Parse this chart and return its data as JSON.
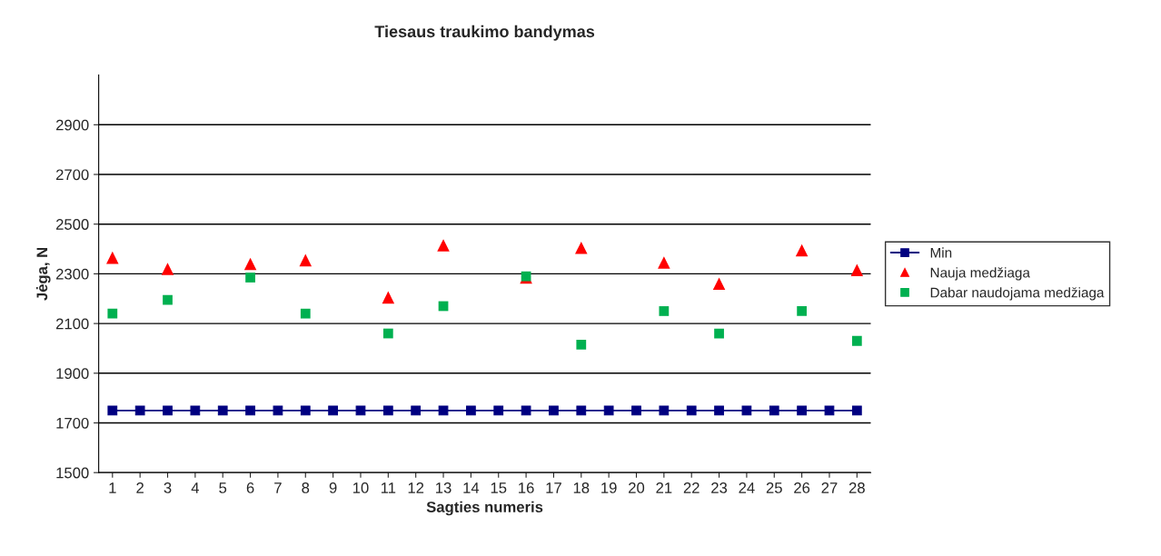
{
  "chart_data": {
    "type": "line",
    "title": "Tiesaus traukimo bandymas",
    "xlabel": "Sagties numeris",
    "ylabel": "Jėga, N",
    "categories": [
      "1",
      "2",
      "3",
      "4",
      "5",
      "6",
      "7",
      "8",
      "9",
      "10",
      "11",
      "12",
      "13",
      "14",
      "15",
      "16",
      "17",
      "18",
      "19",
      "20",
      "21",
      "22",
      "23",
      "24",
      "25",
      "26",
      "27",
      "28"
    ],
    "series": [
      {
        "name": "Min",
        "marker": "square",
        "color": "#000080",
        "values": [
          1750,
          1750,
          1750,
          1750,
          1750,
          1750,
          1750,
          1750,
          1750,
          1750,
          1750,
          1750,
          1750,
          1750,
          1750,
          1750,
          1750,
          1750,
          1750,
          1750,
          1750,
          1750,
          1750,
          1750,
          1750,
          1750,
          1750,
          1750
        ]
      },
      {
        "name": "Nauja medžiaga",
        "type": "scatter",
        "marker": "triangle",
        "color": "#ff0000",
        "values": [
          2365,
          null,
          2320,
          null,
          null,
          2340,
          null,
          2355,
          null,
          null,
          2205,
          null,
          2415,
          null,
          null,
          2285,
          null,
          2405,
          null,
          null,
          2345,
          null,
          2260,
          null,
          null,
          2395,
          null,
          2315
        ]
      },
      {
        "name": "Dabar naudojama medžiaga",
        "type": "scatter",
        "marker": "square",
        "color": "#00b050",
        "values": [
          2140,
          null,
          2195,
          null,
          null,
          2285,
          null,
          2140,
          null,
          null,
          2060,
          null,
          2170,
          null,
          null,
          2290,
          null,
          2015,
          null,
          null,
          2150,
          null,
          2060,
          null,
          null,
          2150,
          null,
          2030
        ]
      }
    ],
    "ylim": [
      1500,
      3100
    ],
    "yticks": [
      1500,
      1700,
      1900,
      2100,
      2300,
      2500,
      2700,
      2900
    ],
    "grid": "y",
    "legend": "right"
  }
}
